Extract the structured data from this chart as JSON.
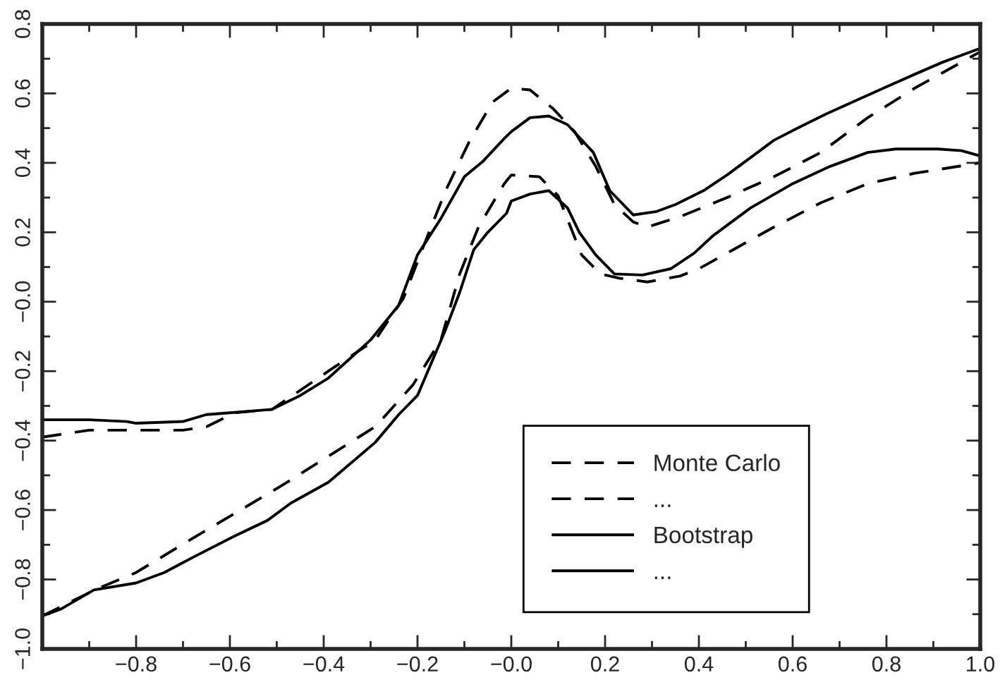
{
  "chart_data": {
    "type": "line",
    "xlim": [
      -1.0,
      1.0
    ],
    "ylim": [
      -1.0,
      0.8
    ],
    "xticks": [
      {
        "value": -1.0,
        "label": null
      },
      {
        "value": -0.8,
        "label": "−0.8"
      },
      {
        "value": -0.6,
        "label": "−0.6"
      },
      {
        "value": -0.4,
        "label": "−0.4"
      },
      {
        "value": -0.2,
        "label": "−0.2"
      },
      {
        "value": 0.0,
        "label": "−0.0"
      },
      {
        "value": 0.2,
        "label": "0.2"
      },
      {
        "value": 0.4,
        "label": "0.4"
      },
      {
        "value": 0.6,
        "label": "0.6"
      },
      {
        "value": 0.8,
        "label": "0.8"
      },
      {
        "value": 1.0,
        "label": "1.0"
      }
    ],
    "yticks": [
      {
        "value": -1.0,
        "label": "−1.0"
      },
      {
        "value": -0.8,
        "label": "−0.8"
      },
      {
        "value": -0.6,
        "label": "−0.6"
      },
      {
        "value": -0.4,
        "label": "−0.4"
      },
      {
        "value": -0.2,
        "label": "−0.2"
      },
      {
        "value": 0.0,
        "label": "−0.0"
      },
      {
        "value": 0.2,
        "label": "0.2"
      },
      {
        "value": 0.4,
        "label": "0.4"
      },
      {
        "value": 0.6,
        "label": "0.6"
      },
      {
        "value": 0.8,
        "label": "0.8"
      }
    ],
    "grid": false,
    "legend": "bottom right",
    "marker": "none",
    "series": [
      {
        "name": "Monte Carlo",
        "color": "#000000",
        "line_style": "dashed",
        "x": [
          -1.0,
          -0.9,
          -0.7,
          -0.65,
          -0.59,
          -0.51,
          -0.39,
          -0.29,
          -0.23,
          -0.19,
          -0.14,
          -0.09,
          -0.04,
          0.0,
          0.04,
          0.09,
          0.135,
          0.18,
          0.22,
          0.26,
          0.29,
          0.36,
          0.46,
          0.56,
          0.66,
          0.76,
          0.86,
          1.0
        ],
        "values": [
          -0.39,
          -0.37,
          -0.37,
          -0.36,
          -0.32,
          -0.31,
          -0.2,
          -0.11,
          0.01,
          0.15,
          0.32,
          0.46,
          0.575,
          0.615,
          0.61,
          0.555,
          0.49,
          0.39,
          0.28,
          0.23,
          0.215,
          0.245,
          0.3,
          0.36,
          0.43,
          0.53,
          0.615,
          0.72
        ]
      },
      {
        "name": "...",
        "color": "#000000",
        "line_style": "dashed",
        "x": [
          -1.0,
          -0.88,
          -0.8,
          -0.69,
          -0.59,
          -0.49,
          -0.39,
          -0.29,
          -0.21,
          -0.15,
          -0.11,
          -0.07,
          -0.015,
          0.0,
          0.06,
          0.1,
          0.15,
          0.19,
          0.23,
          0.29,
          0.36,
          0.4,
          0.46,
          0.56,
          0.66,
          0.76,
          0.86,
          1.0
        ],
        "values": [
          -0.905,
          -0.825,
          -0.78,
          -0.69,
          -0.61,
          -0.53,
          -0.445,
          -0.36,
          -0.24,
          -0.11,
          0.08,
          0.215,
          0.34,
          0.365,
          0.36,
          0.305,
          0.135,
          0.08,
          0.068,
          0.057,
          0.074,
          0.095,
          0.14,
          0.215,
          0.285,
          0.34,
          0.37,
          0.4
        ]
      },
      {
        "name": "Bootstrap",
        "color": "#000000",
        "line_style": "solid",
        "x": [
          -1.0,
          -0.9,
          -0.82,
          -0.8,
          -0.7,
          -0.65,
          -0.6,
          -0.51,
          -0.45,
          -0.39,
          -0.3,
          -0.24,
          -0.2,
          -0.15,
          -0.1,
          -0.06,
          -0.015,
          0.0,
          0.04,
          0.08,
          0.12,
          0.175,
          0.21,
          0.26,
          0.31,
          0.35,
          0.41,
          0.46,
          0.52,
          0.56,
          0.61,
          0.67,
          0.76,
          0.86,
          0.92,
          1.0
        ],
        "values": [
          -0.34,
          -0.34,
          -0.345,
          -0.35,
          -0.345,
          -0.325,
          -0.32,
          -0.31,
          -0.27,
          -0.22,
          -0.11,
          -0.01,
          0.135,
          0.24,
          0.36,
          0.405,
          0.47,
          0.49,
          0.53,
          0.535,
          0.51,
          0.43,
          0.32,
          0.25,
          0.26,
          0.28,
          0.32,
          0.365,
          0.425,
          0.465,
          0.5,
          0.54,
          0.595,
          0.655,
          0.69,
          0.73
        ]
      },
      {
        "name": "...",
        "color": "#000000",
        "line_style": "solid",
        "x": [
          -1.0,
          -0.96,
          -0.89,
          -0.8,
          -0.74,
          -0.67,
          -0.59,
          -0.52,
          -0.47,
          -0.39,
          -0.29,
          -0.24,
          -0.2,
          -0.14,
          -0.11,
          -0.08,
          -0.05,
          -0.01,
          0.0,
          0.04,
          0.08,
          0.12,
          0.145,
          0.18,
          0.22,
          0.28,
          0.34,
          0.39,
          0.43,
          0.51,
          0.6,
          0.68,
          0.76,
          0.82,
          0.91,
          0.96,
          1.0
        ],
        "values": [
          -0.905,
          -0.885,
          -0.83,
          -0.81,
          -0.78,
          -0.73,
          -0.675,
          -0.63,
          -0.58,
          -0.52,
          -0.405,
          -0.325,
          -0.27,
          -0.08,
          0.027,
          0.15,
          0.2,
          0.255,
          0.29,
          0.31,
          0.32,
          0.27,
          0.2,
          0.135,
          0.08,
          0.077,
          0.095,
          0.14,
          0.19,
          0.27,
          0.34,
          0.39,
          0.43,
          0.44,
          0.44,
          0.435,
          0.42
        ]
      }
    ]
  }
}
